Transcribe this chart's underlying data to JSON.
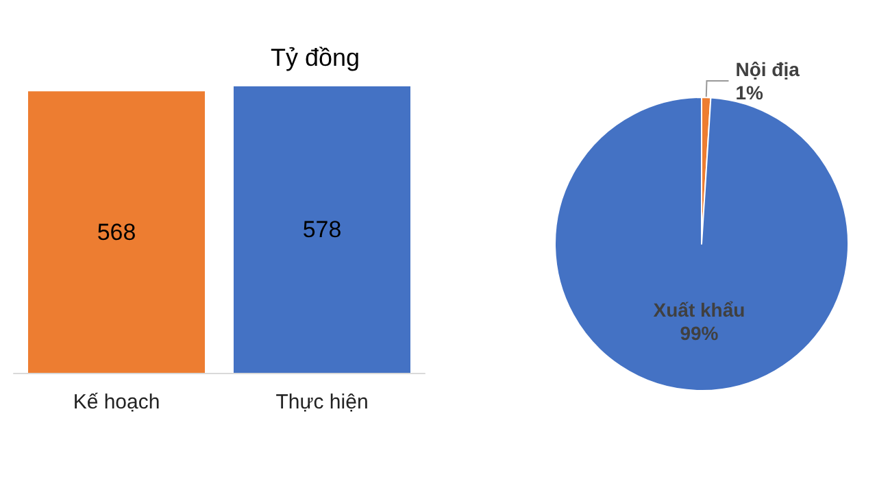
{
  "chart_data": [
    {
      "type": "bar",
      "title": "Tỷ đồng",
      "categories": [
        "Kế hoạch",
        "Thực hiện"
      ],
      "values": [
        568,
        578
      ],
      "colors": [
        "#ed7d31",
        "#4472c4"
      ],
      "tick_labels": "x",
      "data_labels": true
    },
    {
      "type": "pie",
      "categories": [
        "Nội địa",
        "Xuất khẩu"
      ],
      "values": [
        1,
        99
      ],
      "colors": [
        "#ed7d31",
        "#4472c4"
      ],
      "value_labels": [
        "1%",
        "99%"
      ]
    }
  ]
}
